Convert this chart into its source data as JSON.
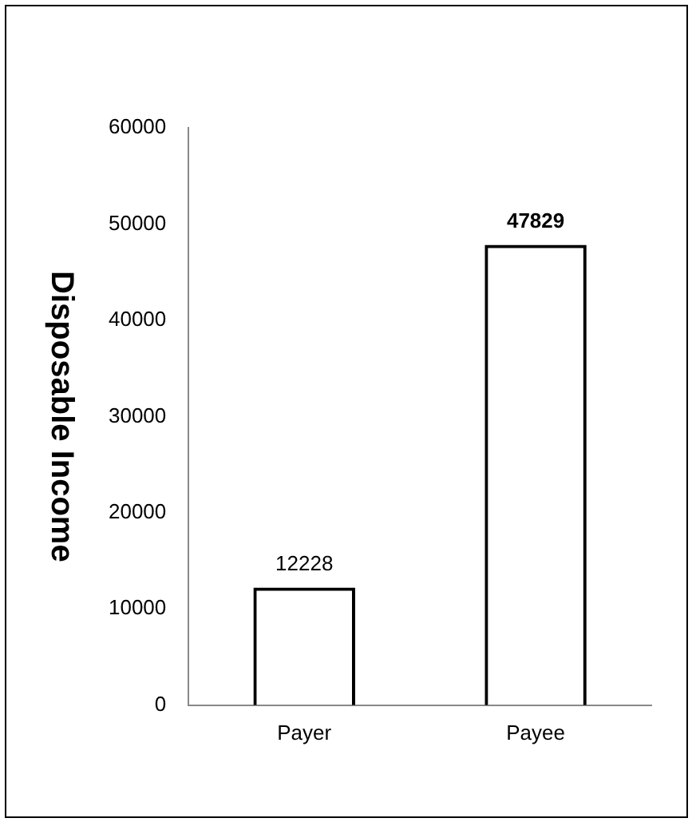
{
  "chart_data": {
    "type": "bar",
    "ylabel": "Disposable Income",
    "categories": [
      "Payer",
      "Payee"
    ],
    "values": [
      12228,
      47829
    ],
    "color": "#000000",
    "ylim": [
      0,
      60000
    ],
    "yticks": [
      0,
      10000,
      20000,
      30000,
      40000,
      50000,
      60000
    ],
    "grid": false,
    "legend": false,
    "data_labels": true
  }
}
